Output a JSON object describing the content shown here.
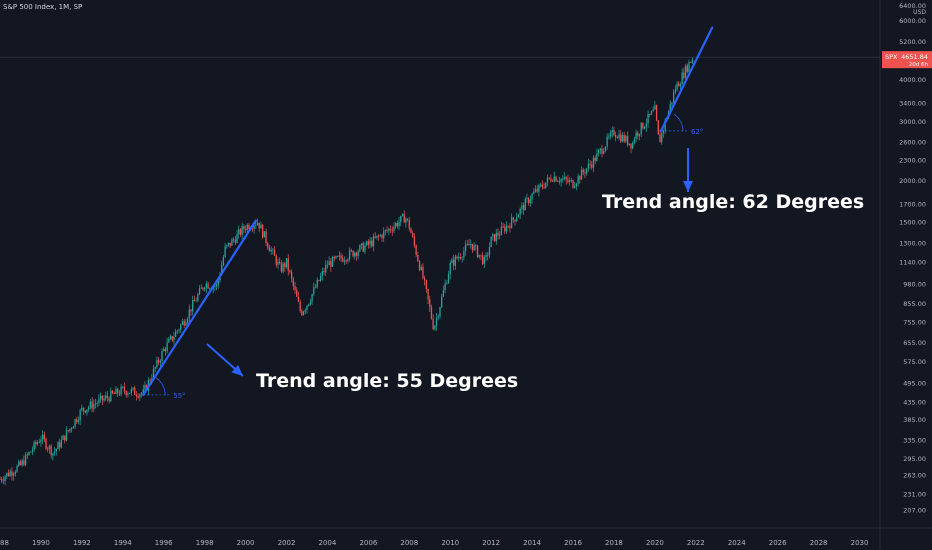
{
  "header": {
    "title": "S&P 500 Index, 1M, SP"
  },
  "price_scale": {
    "currency": "USD",
    "top_label": "6400.00"
  },
  "last_price": {
    "symbol": "SPX",
    "value": "4651.84",
    "countdown": "20d 6h"
  },
  "colors": {
    "background": "#131722",
    "up": "#26a69a",
    "down": "#ef5350",
    "trendline": "#2962ff",
    "annotation_text": "#ffffff",
    "axis_text": "#b2b5be",
    "price_tag": "#ef5350"
  },
  "chart_data": {
    "type": "candlestick",
    "title": "S&P 500 Index, 1M, SP",
    "scale": "log",
    "ylim": [
      182,
      6800
    ],
    "xlim": [
      1988,
      2031
    ],
    "x_ticks": [
      "1988",
      "1990",
      "1992",
      "1994",
      "1996",
      "1998",
      "2000",
      "2002",
      "2004",
      "2006",
      "2008",
      "2010",
      "2012",
      "2014",
      "2016",
      "2018",
      "2020",
      "2022",
      "2024",
      "2026",
      "2028",
      "2030"
    ],
    "y_ticks": [
      "182.00",
      "207.00",
      "231.00",
      "263.00",
      "295.00",
      "335.00",
      "385.00",
      "435.00",
      "495.00",
      "575.00",
      "655.00",
      "755.00",
      "855.00",
      "980.00",
      "1140.00",
      "1300.00",
      "1500.00",
      "1700.00",
      "2000.00",
      "2300.00",
      "2600.00",
      "3000.00",
      "3400.00",
      "4000.00",
      "4600.00",
      "5200.00",
      "6000.00"
    ],
    "series": [
      {
        "values": [
          {
            "date": "1988.0",
            "close": 255
          },
          {
            "date": "1989.0",
            "close": 280
          },
          {
            "date": "1990.0",
            "close": 340
          },
          {
            "date": "1990.6",
            "close": 305
          },
          {
            "date": "1991.0",
            "close": 330
          },
          {
            "date": "1992.0",
            "close": 410
          },
          {
            "date": "1993.0",
            "close": 440
          },
          {
            "date": "1994.0",
            "close": 470
          },
          {
            "date": "1995.0",
            "close": 460
          },
          {
            "date": "1996.0",
            "close": 620
          },
          {
            "date": "1997.0",
            "close": 760
          },
          {
            "date": "1998.0",
            "close": 980
          },
          {
            "date": "1998.6",
            "close": 960
          },
          {
            "date": "1999.0",
            "close": 1240
          },
          {
            "date": "2000.0",
            "close": 1450
          },
          {
            "date": "2000.6",
            "close": 1500
          },
          {
            "date": "2001.0",
            "close": 1320
          },
          {
            "date": "2001.7",
            "close": 1080
          },
          {
            "date": "2002.0",
            "close": 1130
          },
          {
            "date": "2002.7",
            "close": 800
          },
          {
            "date": "2003.0",
            "close": 850
          },
          {
            "date": "2004.0",
            "close": 1120
          },
          {
            "date": "2005.0",
            "close": 1190
          },
          {
            "date": "2006.0",
            "close": 1280
          },
          {
            "date": "2007.0",
            "close": 1420
          },
          {
            "date": "2007.8",
            "close": 1550
          },
          {
            "date": "2008.0",
            "close": 1450
          },
          {
            "date": "2008.7",
            "close": 1000
          },
          {
            "date": "2009.2",
            "close": 720
          },
          {
            "date": "2010.0",
            "close": 1110
          },
          {
            "date": "2011.0",
            "close": 1290
          },
          {
            "date": "2011.7",
            "close": 1130
          },
          {
            "date": "2012.0",
            "close": 1320
          },
          {
            "date": "2013.0",
            "close": 1500
          },
          {
            "date": "2014.0",
            "close": 1800
          },
          {
            "date": "2015.0",
            "close": 2050
          },
          {
            "date": "2016.0",
            "close": 1950
          },
          {
            "date": "2017.0",
            "close": 2280
          },
          {
            "date": "2018.0",
            "close": 2780
          },
          {
            "date": "2018.9",
            "close": 2550
          },
          {
            "date": "2019.0",
            "close": 2700
          },
          {
            "date": "2020.0",
            "close": 3230
          },
          {
            "date": "2020.2",
            "close": 2580
          },
          {
            "date": "2021.0",
            "close": 3750
          },
          {
            "date": "2021.8",
            "close": 4600
          },
          {
            "date": "2021.9",
            "close": 4651.84
          }
        ]
      }
    ],
    "trendlines": [
      {
        "from": {
          "date": "1995.0",
          "price": 455
        },
        "to": {
          "date": "2000.5",
          "price": 1510
        },
        "angle_label": "55°"
      },
      {
        "from": {
          "date": "2020.3",
          "price": 2800
        },
        "to": {
          "date": "2022.8",
          "price": 5700
        },
        "angle_label": "62°"
      }
    ],
    "annotations": [
      {
        "text": "Trend angle: 55 Degrees"
      },
      {
        "text": "Trend angle: 62 Degrees"
      }
    ]
  }
}
